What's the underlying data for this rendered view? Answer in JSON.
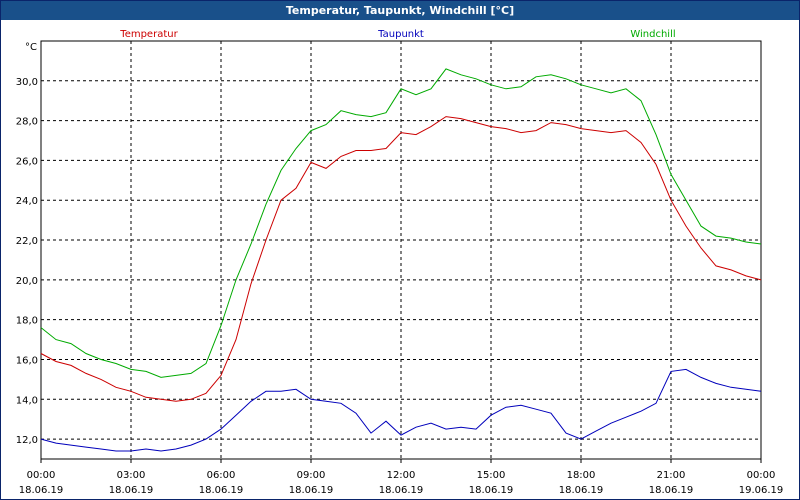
{
  "window": {
    "title": "Temperatur, Taupunkt, Windchill [°C]"
  },
  "chart_data": {
    "type": "line",
    "title": "Temperatur, Taupunkt, Windchill [°C]",
    "ylabel": "°C",
    "xlabel": "",
    "xlim": [
      0,
      24
    ],
    "ylim": [
      11,
      32
    ],
    "grid": true,
    "legend": "top",
    "x_ticks": [
      {
        "h": 0,
        "time": "00:00",
        "date": "18.06.19"
      },
      {
        "h": 3,
        "time": "03:00",
        "date": "18.06.19"
      },
      {
        "h": 6,
        "time": "06:00",
        "date": "18.06.19"
      },
      {
        "h": 9,
        "time": "09:00",
        "date": "18.06.19"
      },
      {
        "h": 12,
        "time": "12:00",
        "date": "18.06.19"
      },
      {
        "h": 15,
        "time": "15:00",
        "date": "18.06.19"
      },
      {
        "h": 18,
        "time": "18:00",
        "date": "18.06.19"
      },
      {
        "h": 21,
        "time": "21:00",
        "date": "18.06.19"
      },
      {
        "h": 24,
        "time": "00:00",
        "date": "19.06.19"
      }
    ],
    "y_ticks": [
      {
        "v": 12,
        "label": "12,0"
      },
      {
        "v": 14,
        "label": "14,0"
      },
      {
        "v": 16,
        "label": "16,0"
      },
      {
        "v": 18,
        "label": "18,0"
      },
      {
        "v": 20,
        "label": "20,0"
      },
      {
        "v": 22,
        "label": "22,0"
      },
      {
        "v": 24,
        "label": "24,0"
      },
      {
        "v": 26,
        "label": "26,0"
      },
      {
        "v": 28,
        "label": "28,0"
      },
      {
        "v": 30,
        "label": "30,0"
      }
    ],
    "series": [
      {
        "name": "Temperatur",
        "color": "#cc0000",
        "x": [
          0,
          0.5,
          1,
          1.5,
          2,
          2.5,
          3,
          3.5,
          4,
          4.5,
          5,
          5.5,
          6,
          6.5,
          7,
          7.5,
          8,
          8.5,
          9,
          9.5,
          10,
          10.5,
          11,
          11.5,
          12,
          12.5,
          13,
          13.5,
          14,
          14.5,
          15,
          15.5,
          16,
          16.5,
          17,
          17.5,
          18,
          18.5,
          19,
          19.5,
          20,
          20.5,
          21,
          21.5,
          22,
          22.5,
          23,
          23.5,
          24
        ],
        "values": [
          16.3,
          15.9,
          15.7,
          15.3,
          15.0,
          14.6,
          14.4,
          14.1,
          14.0,
          13.9,
          14.0,
          14.3,
          15.2,
          17.0,
          19.8,
          22.0,
          24.0,
          24.6,
          25.9,
          25.6,
          26.2,
          26.5,
          26.5,
          26.6,
          27.4,
          27.3,
          27.7,
          28.2,
          28.1,
          27.9,
          27.7,
          27.6,
          27.4,
          27.5,
          27.9,
          27.8,
          27.6,
          27.5,
          27.4,
          27.5,
          26.9,
          25.8,
          24.0,
          22.7,
          21.6,
          20.7,
          20.5,
          20.2,
          20.0
        ]
      },
      {
        "name": "Taupunkt",
        "color": "#0000bb",
        "x": [
          0,
          0.5,
          1,
          1.5,
          2,
          2.5,
          3,
          3.5,
          4,
          4.5,
          5,
          5.5,
          6,
          6.5,
          7,
          7.5,
          8,
          8.5,
          9,
          9.5,
          10,
          10.5,
          11,
          11.5,
          12,
          12.5,
          13,
          13.5,
          14,
          14.5,
          15,
          15.5,
          16,
          16.5,
          17,
          17.5,
          18,
          18.5,
          19,
          19.5,
          20,
          20.5,
          21,
          21.5,
          22,
          22.5,
          23,
          23.5,
          24
        ],
        "values": [
          12.0,
          11.8,
          11.7,
          11.6,
          11.5,
          11.4,
          11.4,
          11.5,
          11.4,
          11.5,
          11.7,
          12.0,
          12.5,
          13.2,
          13.9,
          14.4,
          14.4,
          14.5,
          14.0,
          13.9,
          13.8,
          13.3,
          12.3,
          12.9,
          12.2,
          12.6,
          12.8,
          12.5,
          12.6,
          12.5,
          13.2,
          13.6,
          13.7,
          13.5,
          13.3,
          12.3,
          12.0,
          12.4,
          12.8,
          13.1,
          13.4,
          13.8,
          15.4,
          15.5,
          15.1,
          14.8,
          14.6,
          14.5,
          14.4
        ]
      },
      {
        "name": "Windchill",
        "color": "#00aa00",
        "x": [
          0,
          0.5,
          1,
          1.5,
          2,
          2.5,
          3,
          3.5,
          4,
          4.5,
          5,
          5.5,
          6,
          6.5,
          7,
          7.5,
          8,
          8.5,
          9,
          9.5,
          10,
          10.5,
          11,
          11.5,
          12,
          12.5,
          13,
          13.5,
          14,
          14.5,
          15,
          15.5,
          16,
          16.5,
          17,
          17.5,
          18,
          18.5,
          19,
          19.5,
          20,
          20.5,
          21,
          21.5,
          22,
          22.5,
          23,
          23.5,
          24
        ],
        "values": [
          17.6,
          17.0,
          16.8,
          16.3,
          16.0,
          15.8,
          15.5,
          15.4,
          15.1,
          15.2,
          15.3,
          15.8,
          17.7,
          20.0,
          21.8,
          23.8,
          25.5,
          26.6,
          27.5,
          27.8,
          28.5,
          28.3,
          28.2,
          28.4,
          29.6,
          29.3,
          29.6,
          30.6,
          30.3,
          30.1,
          29.8,
          29.6,
          29.7,
          30.2,
          30.3,
          30.1,
          29.8,
          29.6,
          29.4,
          29.6,
          29.0,
          27.3,
          25.3,
          24.0,
          22.7,
          22.2,
          22.1,
          21.9,
          21.8
        ]
      }
    ]
  }
}
